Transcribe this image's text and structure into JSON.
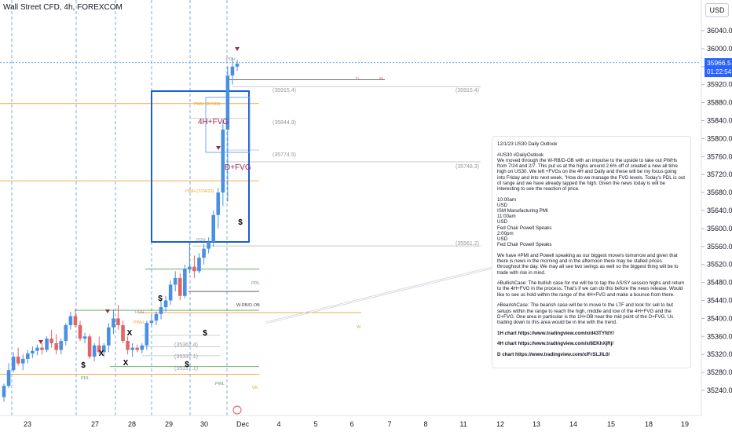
{
  "header": {
    "symbol_title": "Wall Street CFD, 4h, FOREXCOM",
    "currency": "USD"
  },
  "price_axis": {
    "ticks": [
      "36040.0",
      "36000.0",
      "35960.0",
      "35920.0",
      "35880.0",
      "35840.0",
      "35800.0",
      "35760.0",
      "35720.0",
      "35680.0",
      "35640.0",
      "35600.0",
      "35560.0",
      "35520.0",
      "35480.0",
      "35440.0",
      "35400.0",
      "35360.0",
      "35320.0",
      "35280.0",
      "35240.0"
    ],
    "current_price": "35966.5",
    "countdown": "01:22:54"
  },
  "time_axis": {
    "ticks": [
      "23",
      "27",
      "28",
      "29",
      "30",
      "Dec",
      "4",
      "5",
      "6",
      "7",
      "8",
      "11",
      "12",
      "13",
      "14",
      "15",
      "18",
      "19"
    ]
  },
  "colors": {
    "up": "#4a90e2",
    "down": "#e06666",
    "fvg_box": "#1a5fd8",
    "orange": "#f0a030",
    "green": "#5aa05a",
    "purple": "#9c2a4e",
    "grey": "#9598a1"
  },
  "chart_data": {
    "type": "candlestick",
    "title": "Wall Street CFD, 4h, FOREXCOM",
    "ylim": [
      35220,
      36080
    ],
    "y_ticks": [
      36040,
      36000,
      35960,
      35920,
      35880,
      35840,
      35800,
      35760,
      35720,
      35680,
      35640,
      35600,
      35560,
      35520,
      35480,
      35440,
      35400,
      35360,
      35320,
      35280,
      35240
    ],
    "x_tick_labels": [
      "23",
      "27",
      "28",
      "29",
      "30",
      "Dec",
      "4",
      "5",
      "6",
      "7",
      "8",
      "11",
      "12",
      "13",
      "14",
      "15",
      "18",
      "19"
    ],
    "last_price": 35966.5,
    "candles": [
      {
        "o": 35225,
        "h": 35255,
        "l": 35215,
        "c": 35250
      },
      {
        "o": 35250,
        "h": 35300,
        "l": 35245,
        "c": 35285
      },
      {
        "o": 35285,
        "h": 35325,
        "l": 35280,
        "c": 35315
      },
      {
        "o": 35315,
        "h": 35335,
        "l": 35295,
        "c": 35300
      },
      {
        "o": 35300,
        "h": 35320,
        "l": 35285,
        "c": 35310
      },
      {
        "o": 35310,
        "h": 35330,
        "l": 35300,
        "c": 35322
      },
      {
        "o": 35322,
        "h": 35338,
        "l": 35312,
        "c": 35328
      },
      {
        "o": 35328,
        "h": 35342,
        "l": 35318,
        "c": 35335
      },
      {
        "o": 35335,
        "h": 35345,
        "l": 35320,
        "c": 35330
      },
      {
        "o": 35330,
        "h": 35360,
        "l": 35325,
        "c": 35355
      },
      {
        "o": 35355,
        "h": 35375,
        "l": 35335,
        "c": 35345
      },
      {
        "o": 35345,
        "h": 35365,
        "l": 35320,
        "c": 35330
      },
      {
        "o": 35330,
        "h": 35355,
        "l": 35320,
        "c": 35350
      },
      {
        "o": 35350,
        "h": 35390,
        "l": 35340,
        "c": 35385
      },
      {
        "o": 35385,
        "h": 35415,
        "l": 35375,
        "c": 35405
      },
      {
        "o": 35405,
        "h": 35420,
        "l": 35380,
        "c": 35385
      },
      {
        "o": 35385,
        "h": 35395,
        "l": 35350,
        "c": 35355
      },
      {
        "o": 35355,
        "h": 35368,
        "l": 35345,
        "c": 35360
      },
      {
        "o": 35360,
        "h": 35365,
        "l": 35310,
        "c": 35315
      },
      {
        "o": 35315,
        "h": 35345,
        "l": 35305,
        "c": 35340
      },
      {
        "o": 35340,
        "h": 35360,
        "l": 35320,
        "c": 35325
      },
      {
        "o": 35325,
        "h": 35345,
        "l": 35315,
        "c": 35340
      },
      {
        "o": 35340,
        "h": 35390,
        "l": 35325,
        "c": 35380
      },
      {
        "o": 35380,
        "h": 35420,
        "l": 35365,
        "c": 35400
      },
      {
        "o": 35400,
        "h": 35430,
        "l": 35375,
        "c": 35385
      },
      {
        "o": 35385,
        "h": 35395,
        "l": 35345,
        "c": 35350
      },
      {
        "o": 35350,
        "h": 35360,
        "l": 35320,
        "c": 35330
      },
      {
        "o": 35330,
        "h": 35345,
        "l": 35315,
        "c": 35335
      },
      {
        "o": 35335,
        "h": 35342,
        "l": 35325,
        "c": 35330
      },
      {
        "o": 35330,
        "h": 35345,
        "l": 35322,
        "c": 35340
      },
      {
        "o": 35340,
        "h": 35395,
        "l": 35330,
        "c": 35390
      },
      {
        "o": 35390,
        "h": 35410,
        "l": 35380,
        "c": 35395
      },
      {
        "o": 35395,
        "h": 35415,
        "l": 35385,
        "c": 35410
      },
      {
        "o": 35410,
        "h": 35440,
        "l": 35398,
        "c": 35425
      },
      {
        "o": 35425,
        "h": 35450,
        "l": 35415,
        "c": 35440
      },
      {
        "o": 35440,
        "h": 35485,
        "l": 35430,
        "c": 35475
      },
      {
        "o": 35475,
        "h": 35505,
        "l": 35460,
        "c": 35490
      },
      {
        "o": 35490,
        "h": 35500,
        "l": 35440,
        "c": 35450
      },
      {
        "o": 35450,
        "h": 35520,
        "l": 35445,
        "c": 35510
      },
      {
        "o": 35510,
        "h": 35570,
        "l": 35500,
        "c": 35515
      },
      {
        "o": 35515,
        "h": 35540,
        "l": 35490,
        "c": 35505
      },
      {
        "o": 35505,
        "h": 35545,
        "l": 35500,
        "c": 35535
      },
      {
        "o": 35535,
        "h": 35565,
        "l": 35520,
        "c": 35555
      },
      {
        "o": 35555,
        "h": 35580,
        "l": 35545,
        "c": 35570
      },
      {
        "o": 35570,
        "h": 35640,
        "l": 35560,
        "c": 35630
      },
      {
        "o": 35630,
        "h": 35690,
        "l": 35600,
        "c": 35680
      },
      {
        "o": 35680,
        "h": 35840,
        "l": 35650,
        "c": 35820
      },
      {
        "o": 35820,
        "h": 35960,
        "l": 35660,
        "c": 35940
      },
      {
        "o": 35940,
        "h": 35980,
        "l": 35920,
        "c": 35960
      },
      {
        "o": 35960,
        "h": 35975,
        "l": 35950,
        "c": 35966.5
      }
    ],
    "levels": [
      {
        "label": "(35915.4)",
        "value": 35915.4
      },
      {
        "label": "(35844.9)",
        "value": 35844.9
      },
      {
        "label": "(35774.5)",
        "value": 35774.5
      },
      {
        "label": "(35748.3)",
        "value": 35748.3
      },
      {
        "label": "(35561.2)",
        "value": 35561.2
      },
      {
        "label": "(35362.4)",
        "value": 35362.4
      },
      {
        "label": "(35337.1)",
        "value": 35337.1
      },
      {
        "label": "(35317.1)",
        "value": 35317.1
      }
    ],
    "annotations": [
      "PDH",
      "D",
      "M",
      "PWH (2/7/23)",
      "4H+FVG",
      "D+FVG",
      "PWH (7/24/23)",
      "PDH",
      "PDL",
      "W-RB/D-OB",
      "PDH",
      "PWH",
      "W",
      "PDL",
      "PWL",
      "WL",
      "$",
      "$",
      "$",
      "$",
      "$",
      "X",
      "X",
      "X"
    ]
  },
  "note": {
    "title": "12/1/23 US30 Daily Outlook",
    "tag": "#US30 #DailyOutlook",
    "intro": "We moved through the W-RB/D-OB with an impulse to the upside to take out PWHs from 7/24 and 2/7. This put us at the highs around 2.6% off of created a new all time high on US30. We left +FVGs on the 4H and Daily and these will be my focus going into Friday and into next week, \"How do we manage the FVG levels. Today's PDL is out of range and we have already tapped the high. Given the news today is will be interesting to see the reaction of price.",
    "news": [
      "10:00am",
      "USD",
      "ISM Manufacturing PMI",
      "11:00am",
      "USD",
      "Fed Chair Powell Speaks",
      "2:00pm",
      "USD",
      "Fed Chair Powell Speaks"
    ],
    "para2": "We have #PMI and Powell speaking as our biggest movers tomorrow and given that there is news in the morning and in the afternoon there may be stalled prices throughout the day. We may all see two swings as well so the biggest thing will be to trade with risk in mind.",
    "bullish": "#BullishCase: The bullish case for me will be to tap the AS/SY session highs and return to the 4H+FVG in the process. That's if we can do this before the news release. Would like to see us hold within the range of the 4H+FVG and make a bounce from there.",
    "bearish": "#BearishCase: The bearish case will be to move to the LTF and look for sell to but setups within the range to reach the high, middle and low of the 4H+FVG and the D+FVG. One area in particular is the 1H+OB near the mid point of the D+FVG. Us trading down to this area would be in line with the trend.",
    "link1": "1H chart https://www.tradingview.com/x/d43TYfdY/",
    "link2": "4H chart https://www.tradingview.com/x/8EKhXjRj/",
    "link3": "D chart https://www.tradingview.com/x/FrSLJiL0/"
  }
}
